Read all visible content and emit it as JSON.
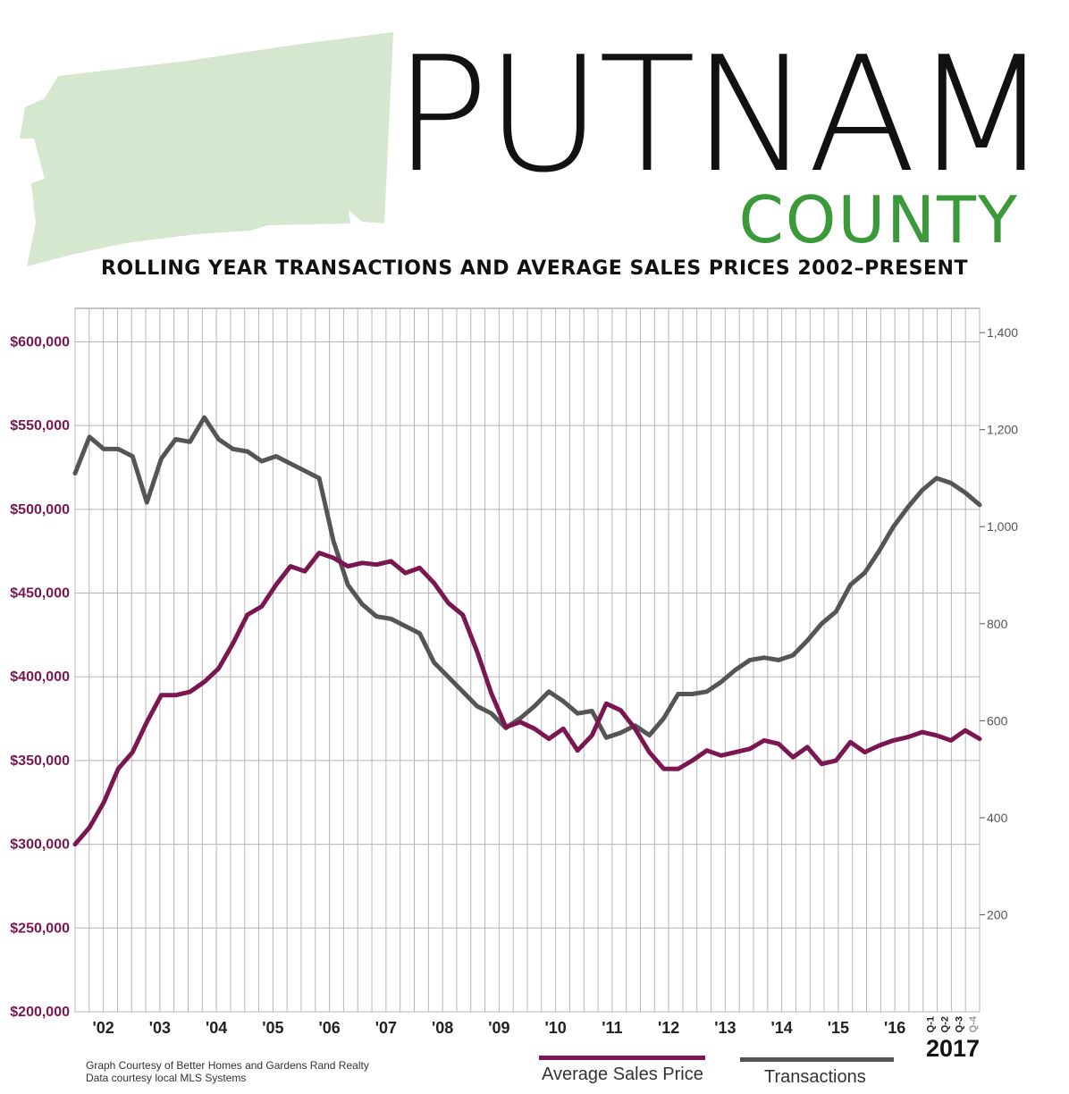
{
  "header": {
    "title": "PUTNAM",
    "subtitle_word": "COUNTY",
    "chart_heading": "ROLLING YEAR TRANSACTIONS AND AVERAGE SALES PRICES 2002–PRESENT"
  },
  "colors": {
    "price": "#7a1650",
    "transactions": "#555555",
    "county_fill": "#d5e7ce",
    "green": "#3a9a3a",
    "grid": "#b5b5b5"
  },
  "footer": {
    "credit_line1": "Graph Courtesy of Better Homes and Gardens Rand Realty",
    "credit_line2": "Data courtesy local MLS Systems",
    "year_label": "2017"
  },
  "chart_data": {
    "type": "line",
    "title": "ROLLING YEAR TRANSACTIONS AND AVERAGE SALES PRICES 2002–PRESENT",
    "x_tick_labels": [
      "'02",
      "'03",
      "'04",
      "'05",
      "'06",
      "'07",
      "'08",
      "'09",
      "'10",
      "'11",
      "'12",
      "'13",
      "'14",
      "'15",
      "'16"
    ],
    "x_quarter_labels_2017": [
      "Q-1",
      "Q-2",
      "Q-3",
      "Q-4"
    ],
    "x_range": [
      "2002 Q1",
      "2017 Q4"
    ],
    "left_axis": {
      "series": "Average Sales Price",
      "ylim": [
        200000,
        620000
      ],
      "tick_values": [
        200000,
        250000,
        300000,
        350000,
        400000,
        450000,
        500000,
        550000,
        600000
      ],
      "tick_labels": [
        "$200,000",
        "$250,000",
        "$300,000",
        "$350,000",
        "$400,000",
        "$450,000",
        "$500,000",
        "$550,000",
        "$600,000"
      ]
    },
    "right_axis": {
      "series": "Transactions",
      "ylim": [
        0,
        1450
      ],
      "tick_values": [
        200,
        400,
        600,
        800,
        1000,
        1200,
        1400
      ],
      "tick_labels": [
        "200",
        "400",
        "600",
        "800",
        "1,000",
        "1,200",
        "1,400"
      ]
    },
    "grid": true,
    "legend_position": "bottom",
    "series": [
      {
        "name": "Average Sales Price",
        "axis": "left",
        "values": [
          300000,
          310000,
          325000,
          345000,
          355000,
          373000,
          389000,
          389000,
          391000,
          397000,
          405000,
          420000,
          437000,
          442000,
          455000,
          466000,
          463000,
          474000,
          471000,
          466000,
          468000,
          467000,
          469000,
          462000,
          465000,
          456000,
          444000,
          437000,
          415000,
          390000,
          370000,
          373000,
          369000,
          363000,
          369000,
          356000,
          365000,
          384000,
          380000,
          369000,
          355000,
          345000,
          345000,
          350000,
          356000,
          353000,
          355000,
          357000,
          362000,
          360000,
          352000,
          358000,
          348000,
          350000,
          361000,
          355000,
          359000,
          362000,
          364000,
          367000,
          365000,
          362000,
          368000,
          363000
        ]
      },
      {
        "name": "Transactions",
        "axis": "right",
        "values": [
          1110,
          1185,
          1160,
          1160,
          1145,
          1050,
          1140,
          1180,
          1175,
          1225,
          1180,
          1160,
          1155,
          1135,
          1145,
          1130,
          1115,
          1100,
          970,
          880,
          840,
          815,
          810,
          795,
          780,
          720,
          690,
          660,
          630,
          615,
          585,
          605,
          630,
          660,
          640,
          615,
          620,
          565,
          575,
          590,
          570,
          605,
          655,
          655,
          660,
          680,
          705,
          725,
          730,
          725,
          735,
          765,
          800,
          825,
          880,
          905,
          950,
          1000,
          1040,
          1075,
          1100,
          1090,
          1070,
          1045
        ]
      }
    ]
  }
}
